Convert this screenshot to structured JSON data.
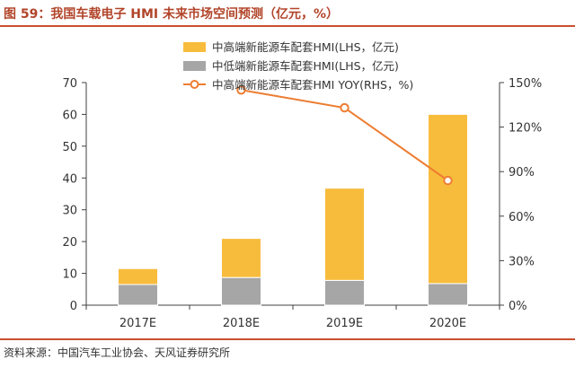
{
  "title": "图 59：我国车载电子 HMI 未来市场空间预测（亿元，%）",
  "source": "资料来源：中国汽车工业协会、天风证券研究所",
  "chart_data": {
    "type": "bar",
    "stacked": true,
    "categories": [
      "2017E",
      "2018E",
      "2019E",
      "2020E"
    ],
    "series": [
      {
        "name": "中低端新能源车配套HMI(LHS，亿元)",
        "axis": "left",
        "kind": "bar",
        "color": "#a6a6a6",
        "values": [
          6.5,
          8.7,
          7.8,
          6.8
        ]
      },
      {
        "name": "中高端新能源车配套HMI(LHS，亿元)",
        "axis": "left",
        "kind": "bar",
        "color": "#f8bc3c",
        "values": [
          5.0,
          12.3,
          29.0,
          53.2
        ]
      },
      {
        "name": "中高端新能源车配套HMI YOY(RHS，%)",
        "axis": "right",
        "kind": "line",
        "color": "#ed7d31",
        "values": [
          null,
          145,
          133,
          84
        ]
      }
    ],
    "y_left": {
      "min": 0,
      "max": 70,
      "step": 10,
      "ticks": [
        "0",
        "10",
        "20",
        "30",
        "40",
        "50",
        "60",
        "70"
      ]
    },
    "y_right": {
      "min": 0,
      "max": 150,
      "step": 30,
      "ticks": [
        "0%",
        "30%",
        "60%",
        "90%",
        "120%",
        "150%"
      ]
    },
    "legend_position": "top-center",
    "grid": false
  }
}
